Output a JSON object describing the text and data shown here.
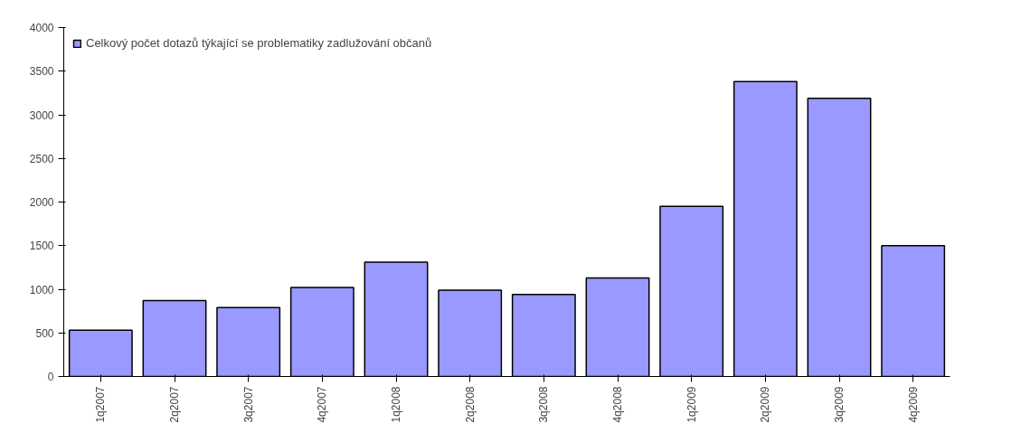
{
  "chart_data": {
    "type": "bar",
    "categories": [
      "1q2007",
      "2q2007",
      "3q2007",
      "4q2007",
      "1q2008",
      "2q2008",
      "3q2008",
      "4q2008",
      "1q2009",
      "2q2009",
      "3q2009",
      "4q2009"
    ],
    "series": [
      {
        "name": "Celkový počet dotazů týkající se problematiky zadlužování občanů",
        "color": "#9999ff",
        "values": [
          530,
          870,
          790,
          1020,
          1310,
          990,
          940,
          1130,
          1950,
          3380,
          3190,
          1500
        ]
      }
    ],
    "ylim": [
      0,
      4000
    ],
    "yticks": [
      0,
      500,
      1000,
      1500,
      2000,
      2500,
      3000,
      3500,
      4000
    ],
    "grid": false,
    "legend": "top left"
  }
}
